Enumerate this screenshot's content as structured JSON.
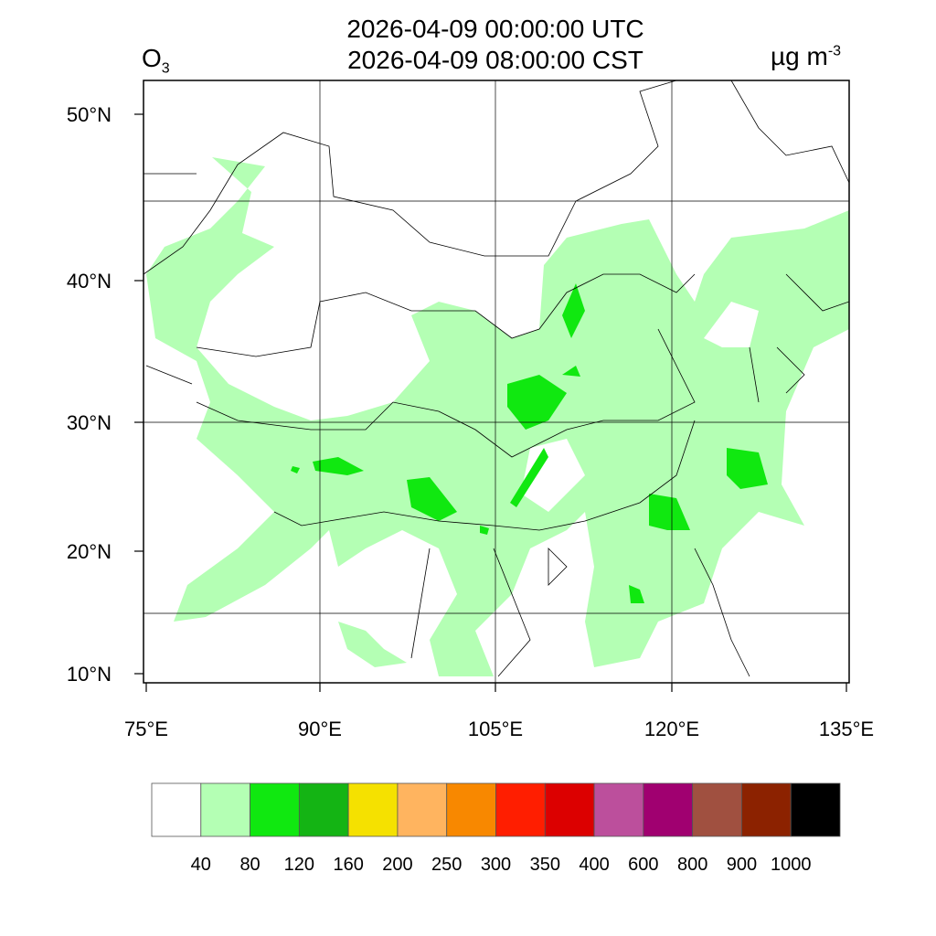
{
  "title": {
    "line1": "2026-04-09 00:00:00 UTC",
    "line2": "2026-04-09 08:00:00 CST"
  },
  "variable": {
    "name": "O",
    "subscript": "3"
  },
  "units": {
    "base": "µg m",
    "exponent": "-3"
  },
  "map": {
    "lon_ticks": [
      "75°E",
      "90°E",
      "105°E",
      "120°E",
      "135°E"
    ],
    "lon_values": [
      75,
      90,
      105,
      120,
      135
    ],
    "lat_ticks": [
      "50°N",
      "40°N",
      "30°N",
      "20°N",
      "10°N"
    ],
    "lat_values": [
      50,
      40,
      30,
      20,
      10
    ],
    "gridlines_lon": [
      90,
      105,
      120
    ],
    "gridlines_lat": [
      45,
      30,
      15
    ],
    "fill_colors": {
      "light": "#b4ffb4",
      "medium": "#10e810"
    }
  },
  "colorbar": {
    "colors": [
      "#ffffff",
      "#b4ffb4",
      "#10e810",
      "#14b414",
      "#f5e100",
      "#ffb45f",
      "#f88800",
      "#ff1e00",
      "#dc0000",
      "#bc4f9c",
      "#a00070",
      "#a05040",
      "#8c2200",
      "#000000"
    ],
    "labels": [
      "40",
      "80",
      "120",
      "160",
      "200",
      "250",
      "300",
      "350",
      "400",
      "600",
      "800",
      "900",
      "1000"
    ]
  }
}
